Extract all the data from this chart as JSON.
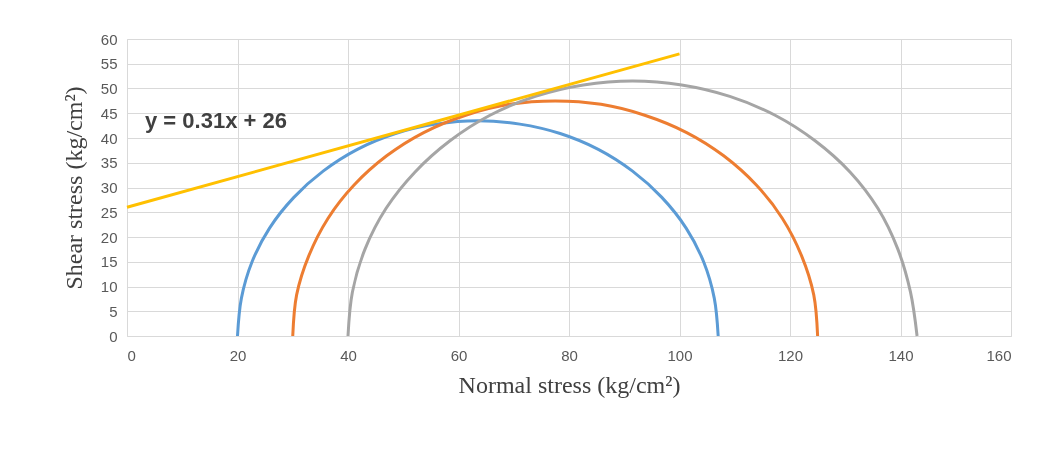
{
  "chart_data": {
    "type": "line",
    "xlabel": "Normal stress (kg/cm²)",
    "ylabel": "Shear stress (kg/cm²)",
    "xlim": [
      0,
      160
    ],
    "xticks": [
      0,
      20,
      40,
      60,
      80,
      100,
      120,
      140,
      160
    ],
    "ylim": [
      0,
      60
    ],
    "yticks": [
      0,
      5,
      10,
      15,
      20,
      25,
      30,
      35,
      40,
      45,
      50,
      55,
      60
    ],
    "grid": true,
    "marker": "none",
    "line_style": "solid",
    "annotations": [
      "y = 0.31x + 26"
    ],
    "series": [
      {
        "color": "#5b9bd5",
        "x": [
          20,
          20.7,
          22.6,
          25.8,
          30.2,
          35.5,
          41.7,
          48.6,
          55.9,
          63.5,
          71.1,
          78.4,
          85.3,
          91.5,
          96.8,
          101.2,
          104.4,
          106.3,
          107
        ],
        "values": [
          0,
          7.6,
          14.9,
          21.8,
          28.0,
          33.3,
          37.7,
          40.9,
          42.8,
          43.5,
          42.8,
          40.9,
          37.7,
          33.3,
          28.0,
          21.8,
          14.9,
          7.6,
          0
        ]
      },
      {
        "color": "#ed7d31",
        "x": [
          30,
          30.7,
          32.9,
          36.4,
          41.1,
          47.0,
          53.7,
          61.3,
          69.2,
          77.5,
          85.8,
          93.7,
          101.3,
          108.0,
          113.9,
          118.6,
          122.1,
          124.3,
          125
        ],
        "values": [
          0,
          8.3,
          16.2,
          23.8,
          30.5,
          36.4,
          41.1,
          44.6,
          46.8,
          47.5,
          46.8,
          44.6,
          41.1,
          36.4,
          30.5,
          23.8,
          16.2,
          8.3,
          0
        ]
      },
      {
        "color": "#a5a5a5",
        "x": [
          40,
          40.8,
          43.1,
          46.9,
          52.1,
          58.4,
          65.7,
          73.9,
          82.6,
          91.5,
          100.4,
          109.1,
          117.3,
          124.6,
          130.9,
          135.9,
          139.5,
          141.8,
          143
        ],
        "values": [
          0,
          8.9,
          17.6,
          25.8,
          33.1,
          39.4,
          44.6,
          48.4,
          50.7,
          51.5,
          50.7,
          48.4,
          44.6,
          39.4,
          33.1,
          25.8,
          17.6,
          8.9,
          0
        ]
      },
      {
        "type": "line",
        "color": "#ffc000",
        "x": [
          0,
          100
        ],
        "values": [
          26,
          57
        ]
      }
    ]
  }
}
